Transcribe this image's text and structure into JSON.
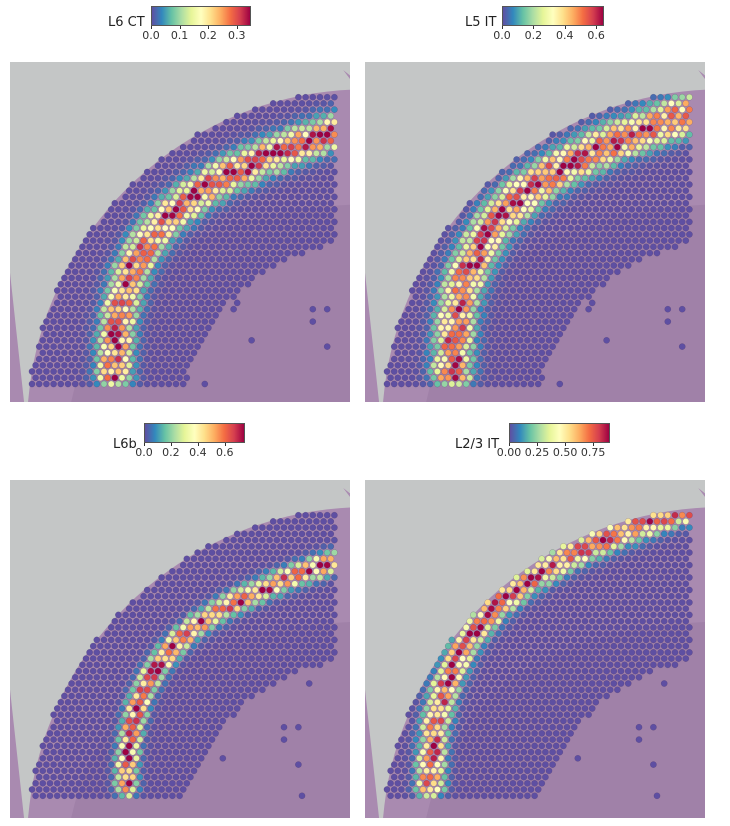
{
  "figure": {
    "panels": [
      {
        "id": "l6-ct",
        "title": "L6 CT",
        "colorbar_ticks": [
          "0.0",
          "0.1",
          "0.2",
          "0.3"
        ],
        "colorbar_range": [
          0,
          0.35
        ],
        "colorbar_tick_values": [
          0,
          0.1,
          0.2,
          0.3
        ],
        "band": "l6ct"
      },
      {
        "id": "l5-it",
        "title": "L5 IT",
        "colorbar_ticks": [
          "0.0",
          "0.2",
          "0.4",
          "0.6"
        ],
        "colorbar_range": [
          0,
          0.65
        ],
        "colorbar_tick_values": [
          0,
          0.2,
          0.4,
          0.6
        ],
        "band": "l5it"
      },
      {
        "id": "l6b",
        "title": "L6b",
        "colorbar_ticks": [
          "0.0",
          "0.2",
          "0.4",
          "0.6"
        ],
        "colorbar_range": [
          0,
          0.75
        ],
        "colorbar_tick_values": [
          0,
          0.2,
          0.4,
          0.6
        ],
        "band": "l6b"
      },
      {
        "id": "l2-3-it",
        "title": "L2/3 IT",
        "colorbar_ticks": [
          "0.00",
          "0.25",
          "0.50",
          "0.75"
        ],
        "colorbar_range": [
          0,
          0.9
        ],
        "colorbar_tick_values": [
          0,
          0.25,
          0.5,
          0.75
        ],
        "band": "l23it"
      }
    ],
    "colormap": [
      "#5e4fa2",
      "#3288bd",
      "#66c2a5",
      "#abdda4",
      "#e6f598",
      "#ffffbf",
      "#fee08b",
      "#fdae61",
      "#f46d43",
      "#d53e4f",
      "#9e0142"
    ],
    "colors": {
      "background_slide": "#c4c6c6",
      "tissue": "#a98ab0",
      "tissue_dark": "#8f6f9c",
      "spot_low": "#5e4fa2"
    }
  }
}
